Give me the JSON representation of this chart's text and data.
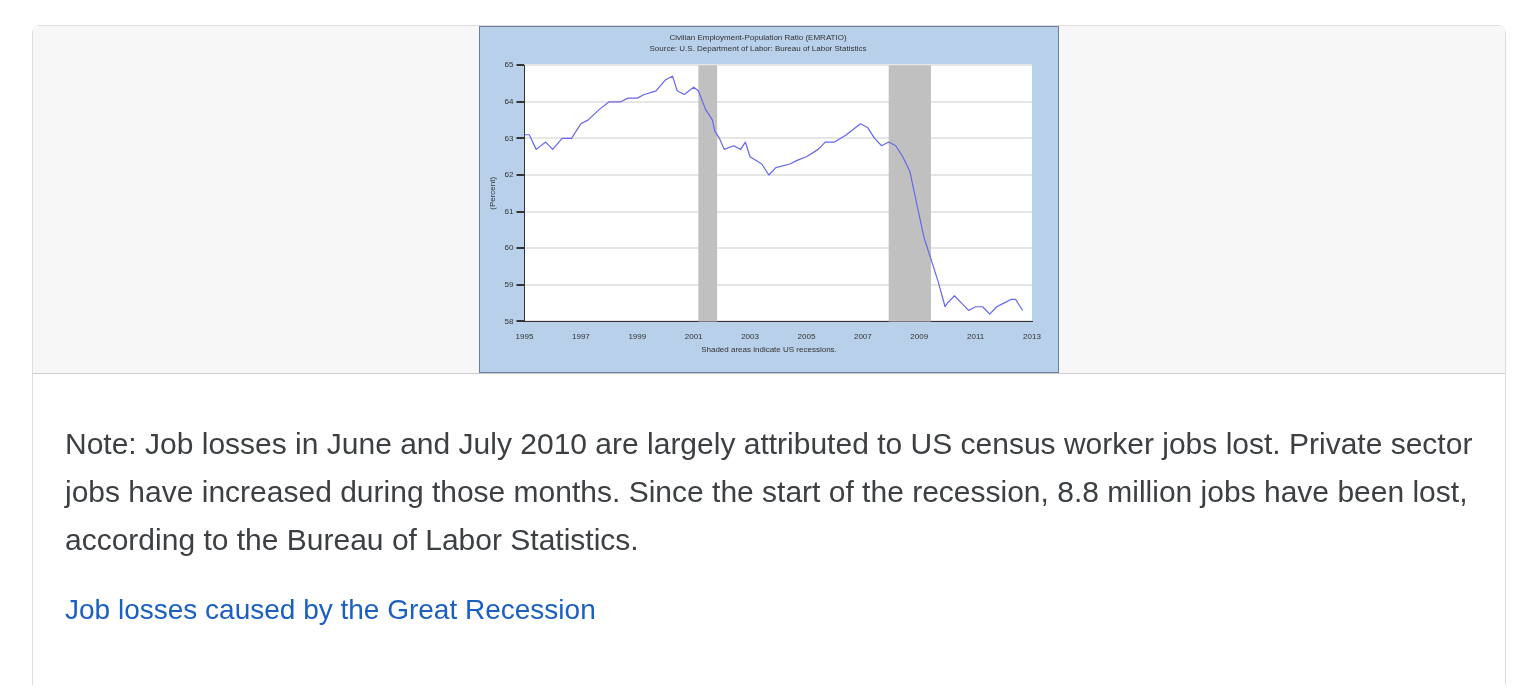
{
  "chart_data": {
    "type": "line",
    "title": "Civilian Employment-Population Ratio (EMRATIO)",
    "subtitle": "Source: U.S. Department of Labor: Bureau of Labor Statistics",
    "ylabel": "(Percent)",
    "x": [
      "1995-01",
      "1995-03",
      "1995-06",
      "1995-10",
      "1996-01",
      "1996-05",
      "1996-09",
      "1997-01",
      "1997-04",
      "1997-09",
      "1998-01",
      "1998-06",
      "1998-09",
      "1999-01",
      "1999-04",
      "1999-09",
      "2000-01",
      "2000-04",
      "2000-06",
      "2000-09",
      "2001-01",
      "2001-03",
      "2001-06",
      "2001-09",
      "2001-10",
      "2001-12",
      "2002-02",
      "2002-06",
      "2002-09",
      "2002-11",
      "2003-01",
      "2003-06",
      "2003-09",
      "2003-12",
      "2004-06",
      "2004-09",
      "2005-01",
      "2005-06",
      "2005-09",
      "2006-01",
      "2006-06",
      "2006-12",
      "2007-03",
      "2007-06",
      "2007-09",
      "2007-12",
      "2008-03",
      "2008-06",
      "2008-09",
      "2008-12",
      "2009-03",
      "2009-06",
      "2009-09",
      "2009-12",
      "2010-01",
      "2010-04",
      "2010-07",
      "2010-10",
      "2011-01",
      "2011-04",
      "2011-07",
      "2011-10",
      "2012-01",
      "2012-04",
      "2012-06",
      "2012-08",
      "2012-09"
    ],
    "series": [
      {
        "color": "#6666ee",
        "values": [
          63.1,
          63.1,
          62.7,
          62.9,
          62.7,
          63.0,
          63.0,
          63.4,
          63.5,
          63.8,
          64.0,
          64.0,
          64.1,
          64.1,
          64.2,
          64.3,
          64.6,
          64.7,
          64.3,
          64.2,
          64.4,
          64.3,
          63.8,
          63.5,
          63.2,
          63.0,
          62.7,
          62.8,
          62.7,
          62.9,
          62.5,
          62.3,
          62.0,
          62.2,
          62.3,
          62.4,
          62.5,
          62.7,
          62.9,
          62.9,
          63.1,
          63.4,
          63.3,
          63.0,
          62.8,
          62.9,
          62.8,
          62.5,
          62.1,
          61.2,
          60.3,
          59.7,
          59.1,
          58.4,
          58.5,
          58.7,
          58.5,
          58.3,
          58.4,
          58.4,
          58.2,
          58.4,
          58.5,
          58.6,
          58.6,
          58.4,
          58.3
        ]
      }
    ],
    "xlim": [
      "1995",
      "2013"
    ],
    "xticks": [
      "1995",
      "1997",
      "1999",
      "2001",
      "2003",
      "2005",
      "2007",
      "2009",
      "2011",
      "2013"
    ],
    "ylim": [
      58,
      65
    ],
    "yticks": [
      58,
      59,
      60,
      61,
      62,
      63,
      64,
      65
    ],
    "grid": "y",
    "marker": "none",
    "legend": false,
    "bands": [
      {
        "axis": "x",
        "from": "2001-03",
        "to": "2001-11",
        "color": "#c0c0c0"
      },
      {
        "axis": "x",
        "from": "2007-12",
        "to": "2009-06",
        "color": "#c0c0c0"
      }
    ],
    "annotations": [
      "Shaded areas indicate US recessions.",
      "Note: Job losses in June and July 2010 are largely attributed to US census worker jobs lost. Private sector jobs have increased during those months. Since the start of the recession, 8.8 million jobs have been lost, according to the Bureau of Labor Statistics.",
      "Job losses caused by the Great Recession"
    ]
  }
}
